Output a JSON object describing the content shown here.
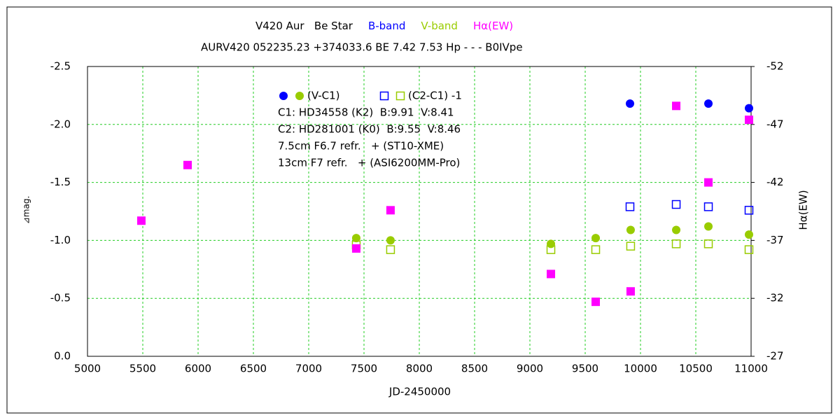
{
  "chart_data": {
    "type": "scatter",
    "title": "V420 Aur   Be Star",
    "band_labels": [
      {
        "text": "B-band",
        "color": "#0000ff"
      },
      {
        "text": "V-band",
        "color": "#99cc00"
      },
      {
        "text": "Hα(EW)",
        "color": "#ff00ff"
      }
    ],
    "subtitle": "AURV420 052235.23 +374033.6 BE 7.42 7.53 Hp - - - B0IVpe",
    "x_label": "JD-2450000",
    "y_label": "⊿mag.",
    "y2_label": "Hα(EW)",
    "legend": [
      {
        "label": "(V-C1)",
        "marker": "circle"
      },
      {
        "label": "(C2-C1) -1",
        "marker": "square-open"
      }
    ],
    "notes": [
      "C1: HD34558 (K2)  B:9.91  V:8.41",
      "C2: HD281001 (K0)  B:9.55  V:8.46",
      "7.5cm F6.7 refr.   + (ST10-XME)",
      "13cm F7 refr.   + (ASI6200MM-Pro)"
    ],
    "xlim": [
      5000,
      11000
    ],
    "xticks": [
      5000,
      5500,
      6000,
      6500,
      7000,
      7500,
      8000,
      8500,
      9000,
      9500,
      10000,
      10500,
      11000
    ],
    "ylim": [
      0,
      -2.5
    ],
    "yticks": [
      {
        "value": 0,
        "label": "0.0"
      },
      -0.5,
      {
        "value": -1,
        "label": "-1.0"
      },
      -1.5,
      {
        "value": -2,
        "label": "-2.0"
      },
      -2.5
    ],
    "y2lim": [
      -27,
      -52
    ],
    "y2ticks": [
      -27,
      -32,
      -37,
      -42,
      -47,
      -52
    ],
    "grid": true,
    "series": [
      {
        "color": "#0000ff",
        "marker": "circle",
        "x": [
          9905,
          10614,
          10981
        ],
        "values": [
          -2.18,
          -2.18,
          -2.14
        ]
      },
      {
        "color": "#99cc00",
        "marker": "circle",
        "x": [
          7430,
          7740,
          9190,
          9595,
          9911,
          10323,
          10614,
          10981
        ],
        "values": [
          -1.02,
          -1.0,
          -0.97,
          -1.02,
          -1.09,
          -1.09,
          -1.12,
          -1.05
        ]
      },
      {
        "color": "#0000ff",
        "marker": "square-open",
        "x": [
          9905,
          10323,
          10614,
          10981
        ],
        "values": [
          -1.29,
          -1.31,
          -1.29,
          -1.26
        ]
      },
      {
        "color": "#99cc00",
        "marker": "square-open",
        "x": [
          7430,
          7740,
          9190,
          9595,
          9911,
          10323,
          10614,
          10981
        ],
        "values": [
          -0.96,
          -0.92,
          -0.92,
          -0.92,
          -0.95,
          -0.97,
          -0.97,
          -0.92
        ]
      },
      {
        "color": "#ff00ff",
        "marker": "square",
        "axis": "y2",
        "x": [
          5487,
          5905,
          7430,
          7740,
          9190,
          9595,
          9911,
          10323,
          10614,
          10981
        ],
        "values": [
          -38.7,
          -43.5,
          -36.3,
          -39.6,
          -34.1,
          -31.7,
          -32.6,
          -48.6,
          -42.0,
          -47.4
        ]
      }
    ]
  }
}
